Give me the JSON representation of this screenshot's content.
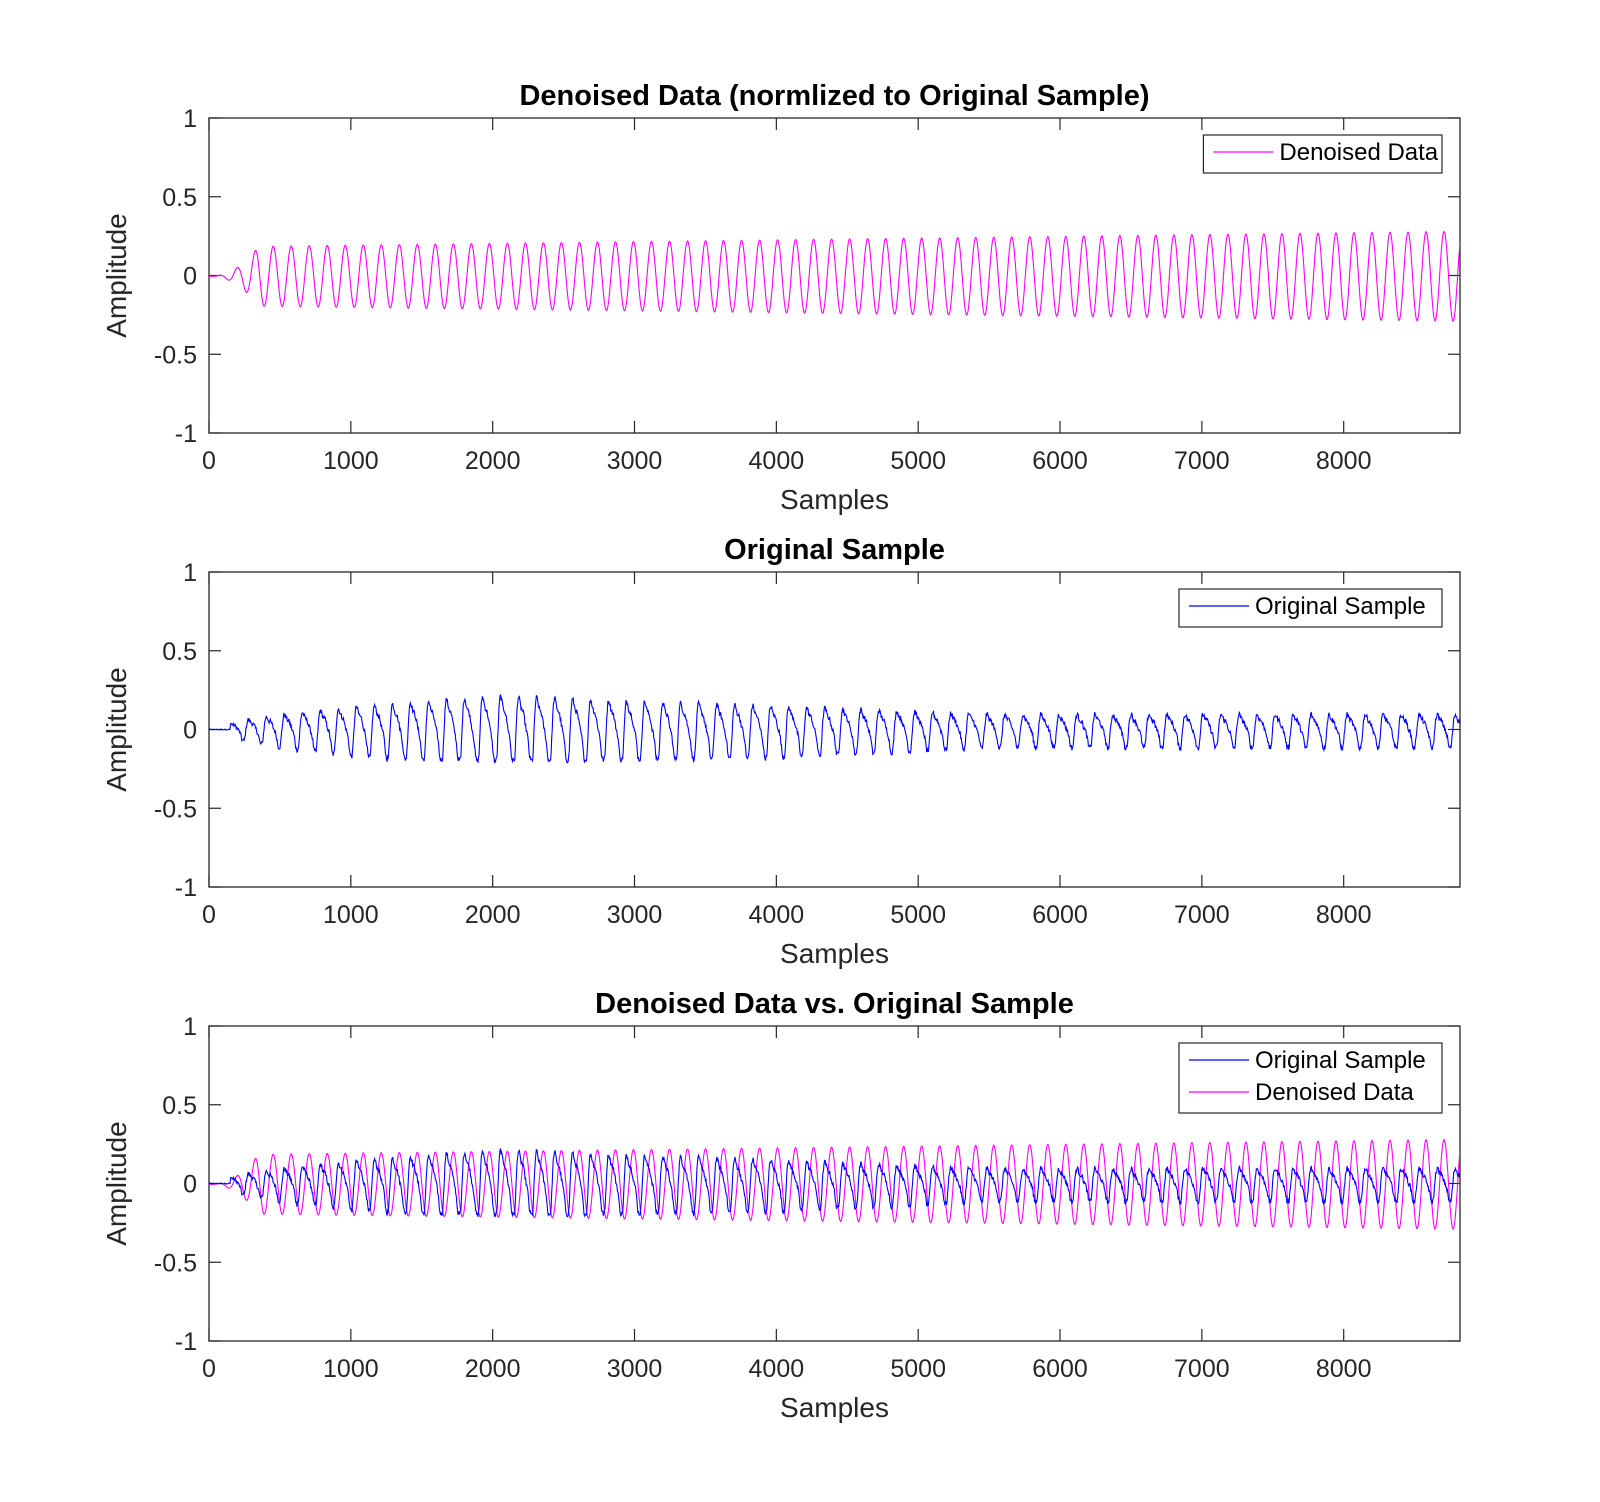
{
  "chart_data": [
    {
      "type": "line",
      "title": "Denoised Data (normlized to Original Sample)",
      "xlabel": "Samples",
      "ylabel": "Amplitude",
      "xlim": [
        0,
        8820
      ],
      "ylim": [
        -1,
        1
      ],
      "xticks": [
        0,
        1000,
        2000,
        3000,
        4000,
        5000,
        6000,
        7000,
        8000
      ],
      "yticks": [
        -1,
        -0.5,
        0,
        0.5,
        1
      ],
      "legend_location": "top-right",
      "series": [
        {
          "name": "Denoised Data",
          "color": "#ff00ff",
          "signal": {
            "period_samples": 127,
            "onset_samples": 350,
            "amplitude_start": 0.19,
            "amplitude_end": 0.285,
            "offset": -0.005
          }
        }
      ]
    },
    {
      "type": "line",
      "title": "Original Sample",
      "xlabel": "Samples",
      "ylabel": "Amplitude",
      "xlim": [
        0,
        8820
      ],
      "ylim": [
        -1,
        1
      ],
      "xticks": [
        0,
        1000,
        2000,
        3000,
        4000,
        5000,
        6000,
        7000,
        8000
      ],
      "yticks": [
        -1,
        -0.5,
        0,
        0.5,
        1
      ],
      "legend_location": "top-right",
      "series": [
        {
          "name": "Original Sample",
          "color": "#0000ff",
          "signal": {
            "period_samples": 127,
            "onset_samples": 150,
            "peak_max": 0.29,
            "peak_max_at": 2000,
            "peak_end": 0.13,
            "trough": -0.17,
            "noisy": true
          }
        }
      ]
    },
    {
      "type": "line",
      "title": "Denoised Data vs. Original Sample",
      "xlabel": "Samples",
      "ylabel": "Amplitude",
      "xlim": [
        0,
        8820
      ],
      "ylim": [
        -1,
        1
      ],
      "xticks": [
        0,
        1000,
        2000,
        3000,
        4000,
        5000,
        6000,
        7000,
        8000
      ],
      "yticks": [
        -1,
        -0.5,
        0,
        0.5,
        1
      ],
      "legend_location": "top-right",
      "series": [
        {
          "name": "Original Sample",
          "color": "#0000ff"
        },
        {
          "name": "Denoised Data",
          "color": "#ff00ff"
        }
      ]
    }
  ]
}
